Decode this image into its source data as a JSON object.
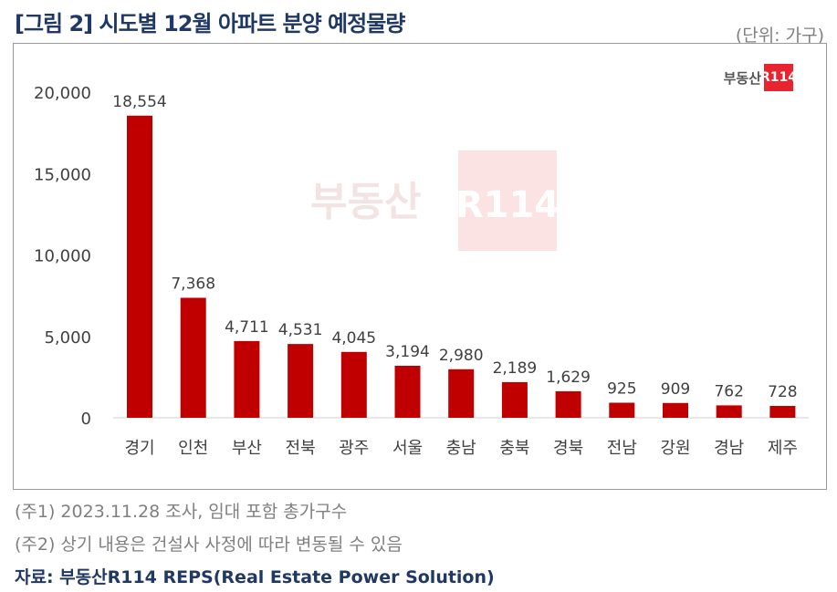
{
  "title": "[그림 2] 시도별 12월 아파트 분양 예정물량",
  "unit": "(단위: 가구)",
  "logo": {
    "text": "부동산",
    "badge": "R114"
  },
  "watermark": {
    "text": "부동산",
    "badge": "R114"
  },
  "notes": [
    "(주1) 2023.11.28 조사, 임대 포함 총가구수",
    "(주2) 상기 내용은 건설사 사정에 따라 변동될 수 있음"
  ],
  "source": "자료: 부동산R114 REPS(Real Estate Power Solution)",
  "colors": {
    "bar": "#c00000",
    "title": "#1f3864"
  },
  "chart_data": {
    "type": "bar",
    "categories": [
      "경기",
      "인천",
      "부산",
      "전북",
      "광주",
      "서울",
      "충남",
      "충북",
      "경북",
      "전남",
      "강원",
      "경남",
      "제주"
    ],
    "values": [
      18554,
      7368,
      4711,
      4531,
      4045,
      3194,
      2980,
      2189,
      1629,
      925,
      909,
      762,
      728
    ],
    "data_labels": [
      "18,554",
      "7,368",
      "4,711",
      "4,531",
      "4,045",
      "3,194",
      "2,980",
      "2,189",
      "1,629",
      "925",
      "909",
      "762",
      "728"
    ],
    "yticks": [
      "0",
      "5,000",
      "10,000",
      "15,000",
      "20,000"
    ],
    "ylim": [
      0,
      20000
    ],
    "grid": false,
    "legend": "none"
  }
}
